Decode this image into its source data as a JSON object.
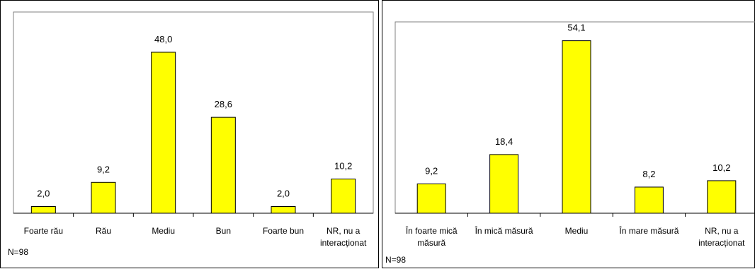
{
  "chart_data": [
    {
      "type": "bar",
      "categories": [
        "Foarte rău",
        "Rău",
        "Mediu",
        "Bun",
        "Foarte bun",
        "NR, nu a interacționat"
      ],
      "values": [
        2.0,
        9.2,
        48.0,
        28.6,
        2.0,
        10.2
      ],
      "value_labels": [
        "2,0",
        "9,2",
        "48,0",
        "28,6",
        "2,0",
        "10,2"
      ],
      "ylim": [
        0,
        60
      ],
      "grid": false,
      "bar_color": "#ffff00",
      "note": "N=98"
    },
    {
      "type": "bar",
      "categories": [
        "În foarte mică măsură",
        "În mică măsură",
        "Mediu",
        "În mare măsură",
        "NR, nu a interacționat"
      ],
      "values": [
        9.2,
        18.4,
        54.1,
        8.2,
        10.2
      ],
      "value_labels": [
        "9,2",
        "18,4",
        "54,1",
        "8,2",
        "10,2"
      ],
      "ylim": [
        0,
        60
      ],
      "grid": false,
      "bar_color": "#ffff00",
      "note": "N=98"
    }
  ]
}
